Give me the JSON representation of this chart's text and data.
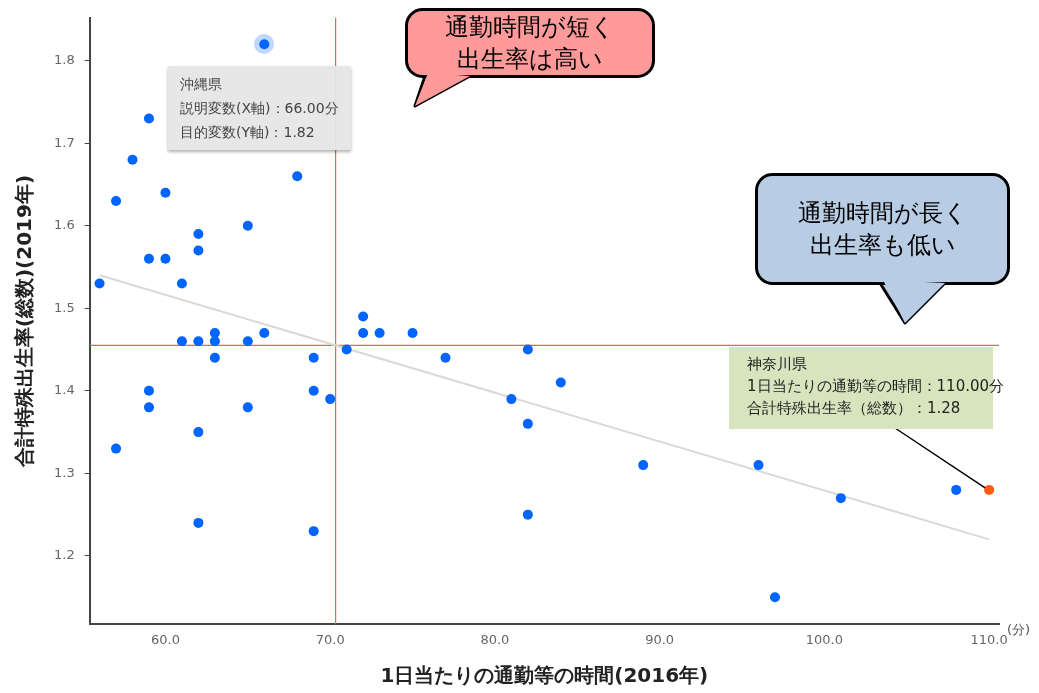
{
  "chart_data": {
    "type": "scatter",
    "xlabel": "1日当たりの通勤等の時間(2016年)",
    "ylabel": "合計特殊出生率(総数)(2019年)",
    "xlim": [
      55.4,
      110.6
    ],
    "ylim": [
      1.117,
      1.852
    ],
    "xticks": [
      {
        "value": 60,
        "label": "60.0"
      },
      {
        "value": 70,
        "label": "70.0"
      },
      {
        "value": 80,
        "label": "80.0"
      },
      {
        "value": 90,
        "label": "90.0"
      },
      {
        "value": 100,
        "label": "100.0"
      },
      {
        "value": 110,
        "label": "110.0"
      }
    ],
    "yticks": [
      1.2,
      1.3,
      1.4,
      1.5,
      1.6,
      1.7,
      1.8
    ],
    "grid": false,
    "legend": false,
    "marker": "circle",
    "series": [
      {
        "type": "scatter",
        "x": [
          56,
          57,
          57,
          58,
          59,
          59,
          59,
          59,
          60,
          60,
          61,
          61,
          62,
          62,
          62,
          62,
          62,
          63,
          63,
          63,
          65,
          65,
          65,
          66,
          66,
          68,
          69,
          69,
          69,
          70,
          71,
          72,
          72,
          73,
          75,
          77,
          81,
          82,
          82,
          82,
          84,
          89,
          96,
          97,
          101,
          108,
          110
        ],
        "values": [
          1.53,
          1.63,
          1.33,
          1.68,
          1.73,
          1.56,
          1.4,
          1.38,
          1.64,
          1.56,
          1.53,
          1.46,
          1.59,
          1.57,
          1.46,
          1.35,
          1.24,
          1.47,
          1.46,
          1.44,
          1.6,
          1.46,
          1.38,
          1.82,
          1.47,
          1.66,
          1.44,
          1.4,
          1.23,
          1.39,
          1.45,
          1.49,
          1.47,
          1.47,
          1.47,
          1.44,
          1.39,
          1.45,
          1.36,
          1.25,
          1.41,
          1.31,
          1.31,
          1.15,
          1.27,
          1.28,
          1.28
        ],
        "colors": [
          "#0064ff",
          "#0064ff",
          "#0064ff",
          "#0064ff",
          "#0064ff",
          "#0064ff",
          "#0064ff",
          "#0064ff",
          "#0064ff",
          "#0064ff",
          "#0064ff",
          "#0064ff",
          "#0064ff",
          "#0064ff",
          "#0064ff",
          "#0064ff",
          "#0064ff",
          "#0064ff",
          "#0064ff",
          "#0064ff",
          "#0064ff",
          "#0064ff",
          "#0064ff",
          "#0064ff",
          "#0064ff",
          "#0064ff",
          "#0064ff",
          "#0064ff",
          "#0064ff",
          "#0064ff",
          "#0064ff",
          "#0064ff",
          "#0064ff",
          "#0064ff",
          "#0064ff",
          "#0064ff",
          "#0064ff",
          "#0064ff",
          "#0064ff",
          "#0064ff",
          "#0064ff",
          "#0064ff",
          "#0064ff",
          "#0064ff",
          "#0064ff",
          "#0064ff",
          "#ff5a14"
        ]
      },
      {
        "type": "line",
        "color": "#d9d9d9",
        "marker": "none",
        "x": [
          56,
          110
        ],
        "values": [
          1.54,
          1.22
        ]
      }
    ],
    "ref_lines": [
      {
        "axis": "x",
        "value": 70.33,
        "color": "#f4623a"
      },
      {
        "axis": "y",
        "value": 1.455,
        "color": "#f4623a"
      }
    ],
    "annotations": [
      "通勤時間が短く出生率は高い",
      "通勤時間が長く出生率も低い",
      "(分)",
      "沖縄県",
      "説明変数(X軸)：66.00分",
      "目的変数(Y軸)：1.82",
      "神奈川県",
      "1日当たりの通勤等の時間：110.00分",
      {
        "text": "合計特殊出生率（総数）：1.28",
        "x": 110,
        "y": 1.28
      }
    ]
  }
}
